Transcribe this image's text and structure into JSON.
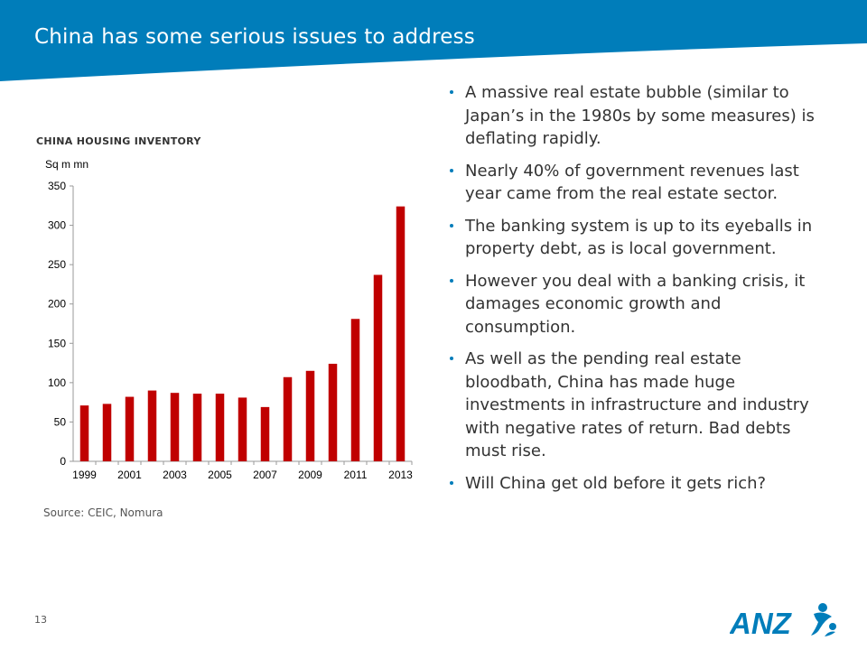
{
  "slide": {
    "title": "China has some serious issues to address",
    "page_number": "13",
    "source": "Source: CEIC, Nomura",
    "colors": {
      "header": "#007dba",
      "bar": "#c00000",
      "logo": "#007dba"
    }
  },
  "bullets": [
    "A massive real estate bubble (similar to Japan’s in the 1980s by some measures) is deflating rapidly.",
    "Nearly 40% of government revenues last year came from the real estate sector.",
    "The banking system is up to its eyeballs in property debt, as is local government.",
    "However you deal with a banking crisis, it damages economic growth and consumption.",
    "As well as the pending real estate bloodbath, China has made huge investments in infrastructure and industry with negative rates of return. Bad debts must rise.",
    "Will China get old before it gets rich?"
  ],
  "logo": {
    "text": "ANZ",
    "icon": "anz-figures-icon"
  },
  "chart_data": {
    "type": "bar",
    "title": "CHINA HOUSING INVENTORY",
    "ylabel": "Sq m mn",
    "xlabel": "",
    "ylim": [
      0,
      350
    ],
    "yticks": [
      0,
      50,
      100,
      150,
      200,
      250,
      300,
      350
    ],
    "categories": [
      "1999",
      "2000",
      "2001",
      "2002",
      "2003",
      "2004",
      "2005",
      "2006",
      "2007",
      "2008",
      "2009",
      "2010",
      "2011",
      "2012",
      "2013"
    ],
    "xtick_labels": [
      "1999",
      "",
      "2001",
      "",
      "2003",
      "",
      "2005",
      "",
      "2007",
      "",
      "2009",
      "",
      "2011",
      "",
      "2013"
    ],
    "values": [
      71,
      73,
      82,
      90,
      87,
      86,
      86,
      81,
      69,
      107,
      115,
      124,
      181,
      237,
      324
    ],
    "grid": false,
    "legend": "none"
  }
}
